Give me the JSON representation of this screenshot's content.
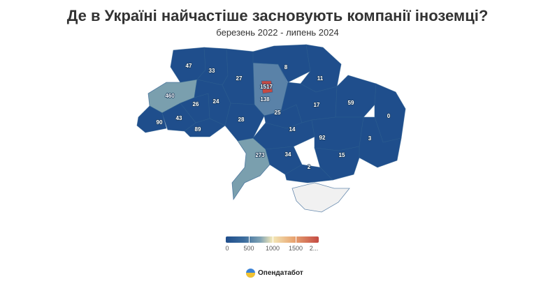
{
  "header": {
    "title": "Де в Україні найчастіше засновують компанії іноземці?",
    "subtitle": "березень 2022 - липень 2024"
  },
  "colors": {
    "low": "#1f4e8c",
    "mid_low": "#5a82a8",
    "mid": "#7a9fae",
    "high": "#c44a43",
    "no_data": "#f1f1f1"
  },
  "legend": {
    "ticks": [
      "0",
      "500",
      "1000",
      "1500",
      "2..."
    ]
  },
  "chart_data": {
    "type": "choropleth",
    "color_scale_range": [
      0,
      2000
    ],
    "regions": [
      {
        "id": "volyn",
        "value": 47
      },
      {
        "id": "rivne",
        "value": 33
      },
      {
        "id": "zhytomyr",
        "value": 27
      },
      {
        "id": "kyiv-oblast",
        "value": 138
      },
      {
        "id": "kyiv-city",
        "value": 1517
      },
      {
        "id": "chernihiv",
        "value": 8
      },
      {
        "id": "sumy",
        "value": 11
      },
      {
        "id": "lviv",
        "value": 460
      },
      {
        "id": "ternopil",
        "value": 26
      },
      {
        "id": "khmelnytskyi",
        "value": 24
      },
      {
        "id": "vinnytsia",
        "value": 28
      },
      {
        "id": "cherkasy",
        "value": 25
      },
      {
        "id": "poltava",
        "value": 17
      },
      {
        "id": "kharkiv",
        "value": 59
      },
      {
        "id": "luhansk",
        "value": 0
      },
      {
        "id": "zakarpattia",
        "value": 90
      },
      {
        "id": "ivano-frankivsk",
        "value": 43
      },
      {
        "id": "chernivtsi",
        "value": 89
      },
      {
        "id": "kirovohrad",
        "value": 14
      },
      {
        "id": "dnipropetrovsk",
        "value": 92
      },
      {
        "id": "donetsk",
        "value": 3
      },
      {
        "id": "odesa",
        "value": 273
      },
      {
        "id": "mykolaiv",
        "value": 34
      },
      {
        "id": "zaporizhzhia",
        "value": 15
      },
      {
        "id": "kherson",
        "value": 2
      },
      {
        "id": "crimea",
        "value": null
      }
    ]
  },
  "brand": {
    "name": "Опендатабот",
    "logo_icon": "opendatabot-logo-icon"
  }
}
